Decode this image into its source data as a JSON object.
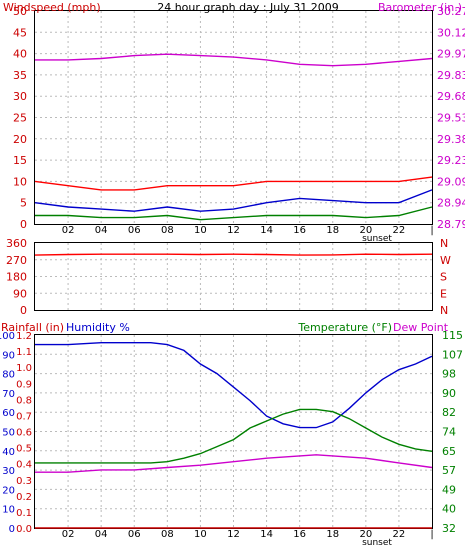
{
  "chart_data": [
    {
      "type": "line",
      "title": "24 hour graph day : July 31 2009",
      "left_axis_label": "Windspeed (mph)",
      "right_axis_label": "Barometer (in.)",
      "left_ylim": [
        0,
        50
      ],
      "left_ticks": [
        "0",
        "5",
        "10",
        "15",
        "20",
        "25",
        "30",
        "35",
        "40",
        "45",
        "50"
      ],
      "right_ylim": [
        28.79,
        30.27
      ],
      "right_ticks": [
        "28.79",
        "28.94",
        "29.09",
        "29.23",
        "29.38",
        "29.53",
        "29.68",
        "29.83",
        "29.97",
        "30.12",
        "30.27"
      ],
      "x_ticks": [
        "02",
        "04",
        "06",
        "08",
        "10",
        "12",
        "14",
        "16",
        "18",
        "20",
        "22",
        "|"
      ],
      "sunset_label": "sunset",
      "grid": true,
      "colors": {
        "gust": "#ff0000",
        "wind_avg": "#0000cc",
        "wind_min": "#008000",
        "barometer": "#cc00cc"
      },
      "series": [
        {
          "axis": "right",
          "color": "#cc00cc",
          "x": [
            0,
            2,
            4,
            6,
            8,
            10,
            12,
            14,
            16,
            18,
            20,
            22,
            24
          ],
          "y": [
            29.93,
            29.93,
            29.94,
            29.96,
            29.97,
            29.96,
            29.95,
            29.93,
            29.9,
            29.89,
            29.9,
            29.92,
            29.94
          ]
        },
        {
          "axis": "left",
          "color": "#ff0000",
          "x": [
            0,
            2,
            4,
            6,
            8,
            10,
            12,
            14,
            16,
            18,
            20,
            22,
            24
          ],
          "y": [
            10,
            9,
            8,
            8,
            9,
            9,
            9,
            10,
            10,
            10,
            10,
            10,
            11
          ]
        },
        {
          "axis": "left",
          "color": "#0000cc",
          "x": [
            0,
            2,
            4,
            6,
            8,
            10,
            12,
            14,
            16,
            18,
            20,
            22,
            24
          ],
          "y": [
            5,
            4,
            3.5,
            3,
            4,
            3,
            3.5,
            5,
            6,
            5.5,
            5,
            5,
            8
          ]
        },
        {
          "axis": "left",
          "color": "#008000",
          "x": [
            0,
            2,
            4,
            6,
            8,
            10,
            12,
            14,
            16,
            18,
            20,
            22,
            24
          ],
          "y": [
            2,
            2,
            1.5,
            1.5,
            2,
            1,
            1.5,
            2,
            2,
            2,
            1.5,
            2,
            4
          ]
        }
      ]
    },
    {
      "type": "line",
      "left_ticks": [
        "0",
        "90",
        "180",
        "270",
        "360"
      ],
      "right_ticks": [
        "N",
        "E",
        "S",
        "W",
        "N"
      ],
      "ylim": [
        0,
        360
      ],
      "x_ticks": [
        "02",
        "04",
        "06",
        "08",
        "10",
        "12",
        "14",
        "16",
        "18",
        "20",
        "22",
        "|"
      ],
      "sunset_label": "sunset",
      "grid": true,
      "series": [
        {
          "color": "#ff0000",
          "x": [
            0,
            2,
            4,
            6,
            8,
            10,
            12,
            14,
            16,
            18,
            20,
            22,
            24
          ],
          "y": [
            295,
            298,
            300,
            300,
            300,
            298,
            300,
            298,
            295,
            296,
            300,
            298,
            300
          ]
        }
      ]
    },
    {
      "type": "line",
      "left_axis_label_1": "Rainfall (in)",
      "left_axis_label_2": "Humidity %",
      "right_axis_label_1": "Temperature (°F)",
      "right_axis_label_2": "Dew Point",
      "rain_ticks": [
        "0.0",
        "0.1",
        "0.2",
        "0.3",
        "0.4",
        "0.5",
        "0.6",
        "0.7",
        "0.8",
        "0.9",
        "1.0",
        "1.1",
        "1.2"
      ],
      "humidity_ticks": [
        "0",
        "10",
        "20",
        "30",
        "40",
        "50",
        "60",
        "70",
        "80",
        "90",
        "100"
      ],
      "temperature_ticks": [
        "32",
        "40",
        "49",
        "57",
        "65",
        "74",
        "82",
        "90",
        "98",
        "107",
        "115"
      ],
      "humidity_ylim": [
        0,
        100
      ],
      "temperature_ylim": [
        32,
        115
      ],
      "x_ticks": [
        "02",
        "04",
        "06",
        "08",
        "10",
        "12",
        "14",
        "16",
        "18",
        "20",
        "22",
        "|"
      ],
      "sunset_label": "sunset",
      "grid": true,
      "colors": {
        "humidity": "#0000cc",
        "temperature": "#008000",
        "dew_point": "#cc00cc",
        "rain": "#cc0000"
      },
      "series": [
        {
          "axis": "humidity",
          "color": "#0000cc",
          "x": [
            0,
            2,
            4,
            6,
            7,
            8,
            9,
            10,
            11,
            12,
            13,
            14,
            15,
            16,
            17,
            18,
            19,
            20,
            21,
            22,
            23,
            24
          ],
          "y": [
            95,
            95,
            96,
            96,
            96,
            95,
            92,
            85,
            80,
            73,
            66,
            58,
            54,
            52,
            52,
            55,
            62,
            70,
            77,
            82,
            85,
            89
          ]
        },
        {
          "axis": "temperature",
          "color": "#008000",
          "x": [
            0,
            2,
            4,
            6,
            7,
            8,
            9,
            10,
            11,
            12,
            13,
            14,
            15,
            16,
            17,
            18,
            19,
            20,
            21,
            22,
            23,
            24
          ],
          "y": [
            60,
            60,
            60,
            60,
            60,
            60.5,
            62,
            64,
            67,
            70,
            75,
            78,
            81,
            83,
            83,
            82,
            79,
            75,
            71,
            68,
            66,
            65
          ]
        },
        {
          "axis": "temperature",
          "color": "#cc00cc",
          "x": [
            0,
            2,
            4,
            6,
            8,
            10,
            12,
            14,
            16,
            17,
            18,
            20,
            22,
            24
          ],
          "y": [
            56,
            56,
            57,
            57,
            58,
            59,
            60.5,
            62,
            63,
            63.5,
            63,
            62,
            60,
            58
          ]
        },
        {
          "axis": "rain",
          "color": "#cc0000",
          "x": [
            0,
            24
          ],
          "y": [
            0.0,
            0.0
          ]
        }
      ]
    }
  ]
}
